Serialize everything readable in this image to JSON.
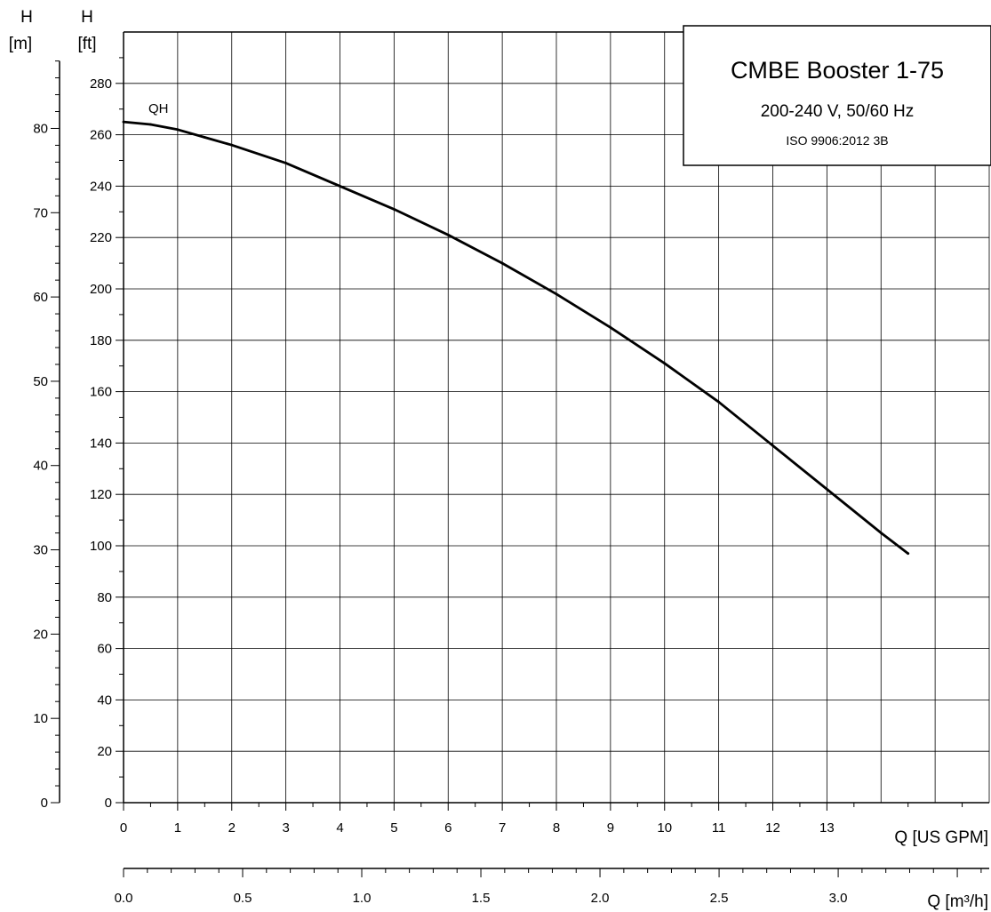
{
  "chart_data": {
    "type": "line",
    "title": "CMBE Booster 1-75",
    "subtitle": "200-240 V, 50/60 Hz",
    "standard": "ISO 9906:2012 3B",
    "series": [
      {
        "name": "QH",
        "x": [
          0,
          0.5,
          1,
          1.5,
          2,
          3,
          4,
          5,
          6,
          7,
          8,
          9,
          10,
          11,
          12,
          13,
          14,
          14.5
        ],
        "values": [
          265,
          264,
          262,
          259,
          256,
          249,
          240,
          231,
          221,
          210,
          198,
          185,
          171,
          156,
          139,
          122,
          105,
          97
        ]
      }
    ],
    "x_axis": {
      "label": "Q [US GPM]",
      "ticks": [
        "0",
        "1",
        "2",
        "3",
        "4",
        "5",
        "6",
        "7",
        "8",
        "9",
        "10",
        "11",
        "12",
        "13"
      ],
      "xlim": [
        0,
        16
      ]
    },
    "x2_axis": {
      "label": "Q [m³/h]",
      "ticks": [
        "0.0",
        "0.5",
        "1.0",
        "1.5",
        "2.0",
        "2.5",
        "3.0"
      ]
    },
    "y_axis": {
      "label_top": "H",
      "label_bottom": "[ft]",
      "ticks": [
        "0",
        "20",
        "40",
        "60",
        "80",
        "100",
        "120",
        "140",
        "160",
        "180",
        "200",
        "220",
        "240",
        "260",
        "280"
      ],
      "ylim": [
        0,
        300
      ]
    },
    "y2_axis": {
      "label_top": "H",
      "label_bottom": "[m]",
      "ticks": [
        "0",
        "10",
        "20",
        "30",
        "40",
        "50",
        "60",
        "70",
        "80"
      ]
    },
    "grid": true
  }
}
